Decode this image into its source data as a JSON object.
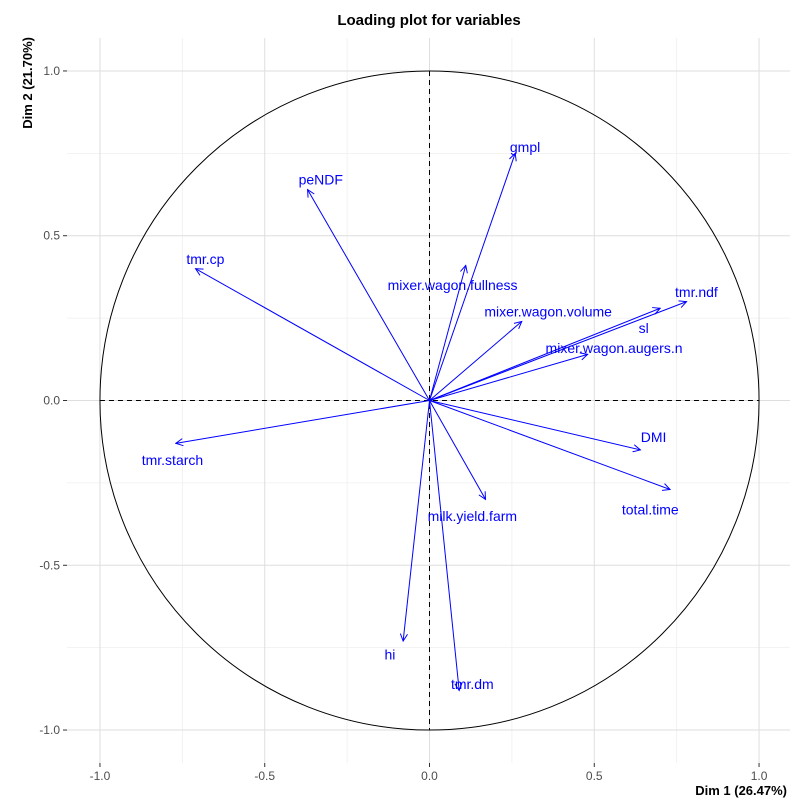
{
  "chart_data": {
    "type": "scatter",
    "subtype": "pca-variable-loading-plot",
    "title": "Loading plot for variables",
    "xlabel": "Dim 1 (26.47%)",
    "ylabel": "Dim 2 (21.70%)",
    "xlim": [
      -1.1,
      1.1
    ],
    "ylim": [
      -1.1,
      1.1
    ],
    "x_ticks": [
      -1.0,
      -0.5,
      0.0,
      0.5,
      1.0
    ],
    "y_ticks": [
      -1.0,
      -0.5,
      0.0,
      0.5,
      1.0
    ],
    "x_tick_labels": [
      "-1.0",
      "-0.5",
      "0.0",
      "0.5",
      "1.0"
    ],
    "y_tick_labels": [
      "-1.0",
      "-0.5",
      "0.0",
      "0.5",
      "1.0"
    ],
    "grid": true,
    "unit_circle": true,
    "zero_lines": "dashed",
    "arrow_color": "#0000ff",
    "variables": [
      {
        "name": "gmpl",
        "x": 0.26,
        "y": 0.75,
        "label_x": 0.29,
        "label_y": 0.77
      },
      {
        "name": "peNDF",
        "x": -0.37,
        "y": 0.64,
        "label_x": -0.33,
        "label_y": 0.67
      },
      {
        "name": "tmr.cp",
        "x": -0.71,
        "y": 0.4,
        "label_x": -0.68,
        "label_y": 0.43
      },
      {
        "name": "mixer.wagon.fullness",
        "x": 0.11,
        "y": 0.41,
        "label_x": 0.07,
        "label_y": 0.35
      },
      {
        "name": "mixer.wagon.volume",
        "x": 0.28,
        "y": 0.24,
        "label_x": 0.36,
        "label_y": 0.27
      },
      {
        "name": "tmr.ndf",
        "x": 0.78,
        "y": 0.3,
        "label_x": 0.81,
        "label_y": 0.33
      },
      {
        "name": "sl",
        "x": 0.7,
        "y": 0.28,
        "label_x": 0.65,
        "label_y": 0.22
      },
      {
        "name": "mixer.wagon.augers.n",
        "x": 0.48,
        "y": 0.14,
        "label_x": 0.56,
        "label_y": 0.16
      },
      {
        "name": "DMI",
        "x": 0.64,
        "y": -0.15,
        "label_x": 0.68,
        "label_y": -0.11
      },
      {
        "name": "total.time",
        "x": 0.73,
        "y": -0.27,
        "label_x": 0.67,
        "label_y": -0.33
      },
      {
        "name": "tmr.starch",
        "x": -0.77,
        "y": -0.13,
        "label_x": -0.78,
        "label_y": -0.18
      },
      {
        "name": "milk.yield.farm",
        "x": 0.17,
        "y": -0.3,
        "label_x": 0.13,
        "label_y": -0.35
      },
      {
        "name": "hi",
        "x": -0.08,
        "y": -0.73,
        "label_x": -0.12,
        "label_y": -0.77
      },
      {
        "name": "tmr.dm",
        "x": 0.09,
        "y": -0.88,
        "label_x": 0.13,
        "label_y": -0.86
      }
    ]
  }
}
